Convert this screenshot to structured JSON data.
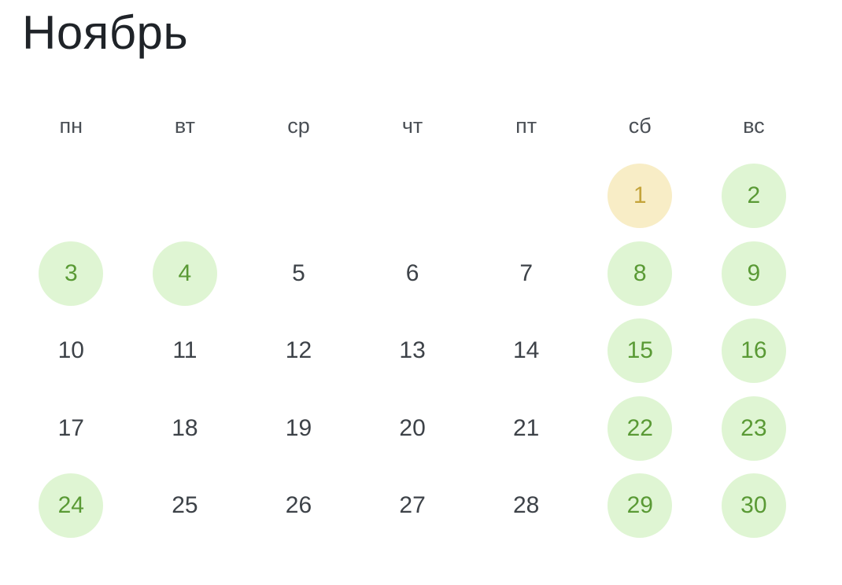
{
  "calendar": {
    "month_title": "Ноябрь",
    "weekdays": [
      "пн",
      "вт",
      "ср",
      "чт",
      "пт",
      "сб",
      "вс"
    ],
    "colors": {
      "green_bg": "#dff5d3",
      "green_text": "#5a9a35",
      "yellow_bg": "#f8edc6",
      "yellow_text": "#c4a43a",
      "normal_text": "#3d4248"
    },
    "weeks": [
      [
        {
          "day": "",
          "status": "empty"
        },
        {
          "day": "",
          "status": "empty"
        },
        {
          "day": "",
          "status": "empty"
        },
        {
          "day": "",
          "status": "empty"
        },
        {
          "day": "",
          "status": "empty"
        },
        {
          "day": "1",
          "status": "yellow"
        },
        {
          "day": "2",
          "status": "green"
        }
      ],
      [
        {
          "day": "3",
          "status": "green"
        },
        {
          "day": "4",
          "status": "green"
        },
        {
          "day": "5",
          "status": "normal"
        },
        {
          "day": "6",
          "status": "normal"
        },
        {
          "day": "7",
          "status": "normal"
        },
        {
          "day": "8",
          "status": "green"
        },
        {
          "day": "9",
          "status": "green"
        }
      ],
      [
        {
          "day": "10",
          "status": "normal"
        },
        {
          "day": "11",
          "status": "normal"
        },
        {
          "day": "12",
          "status": "normal"
        },
        {
          "day": "13",
          "status": "normal"
        },
        {
          "day": "14",
          "status": "normal"
        },
        {
          "day": "15",
          "status": "green"
        },
        {
          "day": "16",
          "status": "green"
        }
      ],
      [
        {
          "day": "17",
          "status": "normal"
        },
        {
          "day": "18",
          "status": "normal"
        },
        {
          "day": "19",
          "status": "normal"
        },
        {
          "day": "20",
          "status": "normal"
        },
        {
          "day": "21",
          "status": "normal"
        },
        {
          "day": "22",
          "status": "green"
        },
        {
          "day": "23",
          "status": "green"
        }
      ],
      [
        {
          "day": "24",
          "status": "green"
        },
        {
          "day": "25",
          "status": "normal"
        },
        {
          "day": "26",
          "status": "normal"
        },
        {
          "day": "27",
          "status": "normal"
        },
        {
          "day": "28",
          "status": "normal"
        },
        {
          "day": "29",
          "status": "green"
        },
        {
          "day": "30",
          "status": "green"
        }
      ]
    ]
  }
}
